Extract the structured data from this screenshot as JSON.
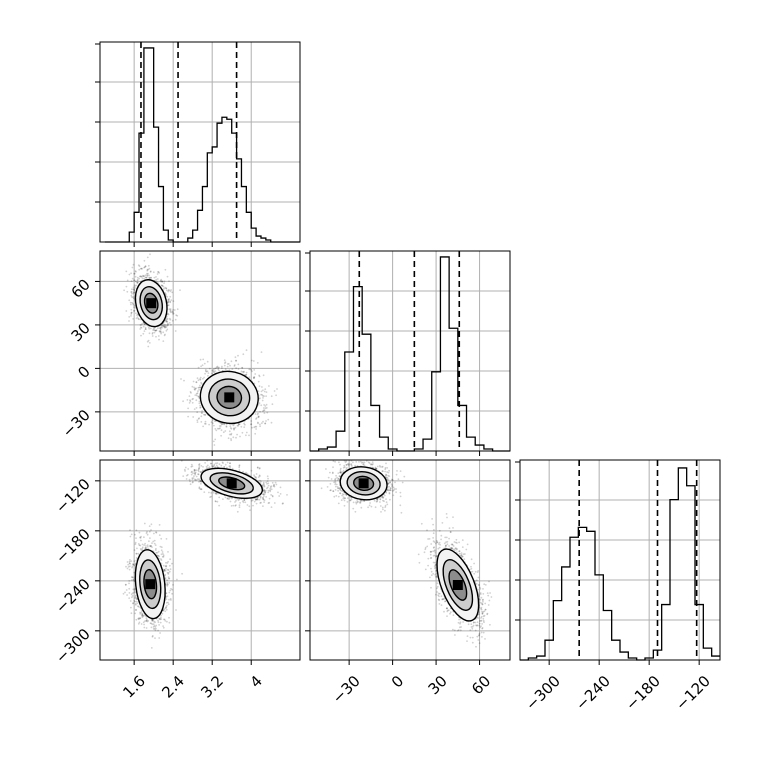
{
  "figure": {
    "background": "#ffffff",
    "line_color": "#000000",
    "grid_color": "#b0b0b0",
    "density_color": "#000000"
  },
  "chart_data": [
    {
      "type": "histogram",
      "panel": "hist-p1",
      "x": [
        1.05,
        1.15,
        1.25,
        1.35,
        1.45,
        1.55,
        1.65,
        1.75,
        1.85,
        1.95,
        2.05,
        2.15,
        2.25,
        2.35,
        2.45,
        2.55,
        2.65,
        2.75,
        2.85,
        2.95,
        3.05,
        3.15,
        3.25,
        3.35,
        3.45,
        3.55,
        3.65,
        3.75,
        3.85,
        3.95,
        4.05,
        4.15,
        4.25,
        4.35,
        4.45,
        4.55,
        4.65,
        4.75,
        4.85,
        4.95
      ],
      "values": [
        0,
        0,
        0,
        0,
        0,
        0.05,
        0.15,
        0.55,
        0.98,
        0.98,
        0.58,
        0.28,
        0.06,
        0.01,
        0,
        0,
        0,
        0.02,
        0.06,
        0.16,
        0.28,
        0.45,
        0.48,
        0.6,
        0.63,
        0.62,
        0.55,
        0.42,
        0.28,
        0.15,
        0.07,
        0.03,
        0.02,
        0.01,
        0,
        0,
        0,
        0,
        0,
        0
      ],
      "xlim": [
        0.9,
        5.0
      ],
      "quantiles": [
        1.74,
        2.5,
        3.7
      ],
      "xticks": [
        1.6,
        2.4,
        3.2,
        4.0
      ],
      "ytick_count": 5
    },
    {
      "type": "histogram",
      "panel": "hist-p2",
      "x": [
        -54,
        -48,
        -42,
        -36,
        -30,
        -24,
        -18,
        -12,
        -6,
        0,
        6,
        12,
        18,
        24,
        30,
        36,
        42,
        48,
        54,
        60,
        66,
        72,
        78
      ],
      "values": [
        0,
        0.01,
        0.02,
        0.1,
        0.5,
        0.83,
        0.59,
        0.23,
        0.07,
        0.01,
        0,
        0,
        0.01,
        0.06,
        0.4,
        0.98,
        0.62,
        0.23,
        0.07,
        0.03,
        0.01,
        0,
        0
      ],
      "xlim": [
        -57,
        81
      ],
      "quantiles": [
        -23,
        15,
        46
      ],
      "xticks": [
        -30,
        0,
        30,
        60
      ],
      "ytick_count": 5
    },
    {
      "type": "histogram",
      "panel": "hist-p3",
      "x": [
        -330,
        -320,
        -310,
        -300,
        -290,
        -280,
        -270,
        -260,
        -250,
        -240,
        -230,
        -220,
        -210,
        -200,
        -190,
        -180,
        -170,
        -160,
        -150,
        -140,
        -130,
        -120,
        -110,
        -100
      ],
      "values": [
        0,
        0.01,
        0.02,
        0.1,
        0.3,
        0.47,
        0.62,
        0.67,
        0.65,
        0.43,
        0.25,
        0.1,
        0.04,
        0.01,
        0,
        0.01,
        0.05,
        0.28,
        0.81,
        0.97,
        0.88,
        0.28,
        0.06,
        0.02
      ],
      "xlim": [
        -335,
        -95
      ],
      "quantiles": [
        -264,
        -170,
        -123
      ],
      "xticks": [
        -300,
        -240,
        -180,
        -120
      ],
      "ytick_count": 5
    },
    {
      "type": "scatter-density",
      "panel": "density-p1-p2",
      "x_param": "p1",
      "y_param": "p2",
      "xlim": [
        0.9,
        5.0
      ],
      "ylim": [
        -57,
        81
      ],
      "modes": [
        {
          "mx": 1.95,
          "my": 45,
          "sx": 0.18,
          "sy": 9,
          "rho": -0.2,
          "weight": 0.5
        },
        {
          "mx": 3.55,
          "my": -20,
          "sx": 0.33,
          "sy": 10,
          "rho": -0.05,
          "weight": 0.5
        }
      ],
      "contour_levels": [
        0.2,
        0.45,
        0.75
      ],
      "xticks": [
        1.6,
        2.4,
        3.2,
        4.0
      ],
      "yticks": [
        -30,
        0,
        30,
        60
      ]
    },
    {
      "type": "scatter-density",
      "panel": "density-p1-p3",
      "x_param": "p1",
      "y_param": "p3",
      "xlim": [
        0.9,
        5.0
      ],
      "ylim": [
        -335,
        -95
      ],
      "modes": [
        {
          "mx": 1.93,
          "my": -244,
          "sx": 0.17,
          "sy": 23,
          "rho": -0.2,
          "weight": 0.5
        },
        {
          "mx": 3.6,
          "my": -123,
          "sx": 0.35,
          "sy": 10,
          "rho": -0.45,
          "weight": 0.5
        }
      ],
      "contour_levels": [
        0.2,
        0.45,
        0.75
      ],
      "xticks": [
        1.6,
        2.4,
        3.2,
        4.0
      ],
      "yticks": [
        -300,
        -240,
        -180,
        -120
      ]
    },
    {
      "type": "scatter-density",
      "panel": "density-p2-p3",
      "x_param": "p2",
      "y_param": "p3",
      "xlim": [
        -57,
        81
      ],
      "ylim": [
        -335,
        -95
      ],
      "modes": [
        {
          "mx": -20,
          "my": -123,
          "sx": 9,
          "sy": 11,
          "rho": -0.1,
          "weight": 0.5
        },
        {
          "mx": 45,
          "my": -245,
          "sx": 8,
          "sy": 24,
          "rho": -0.55,
          "weight": 0.5
        }
      ],
      "contour_levels": [
        0.2,
        0.45,
        0.75
      ],
      "xticks": [
        -30,
        0,
        30,
        60
      ],
      "yticks": []
    }
  ]
}
